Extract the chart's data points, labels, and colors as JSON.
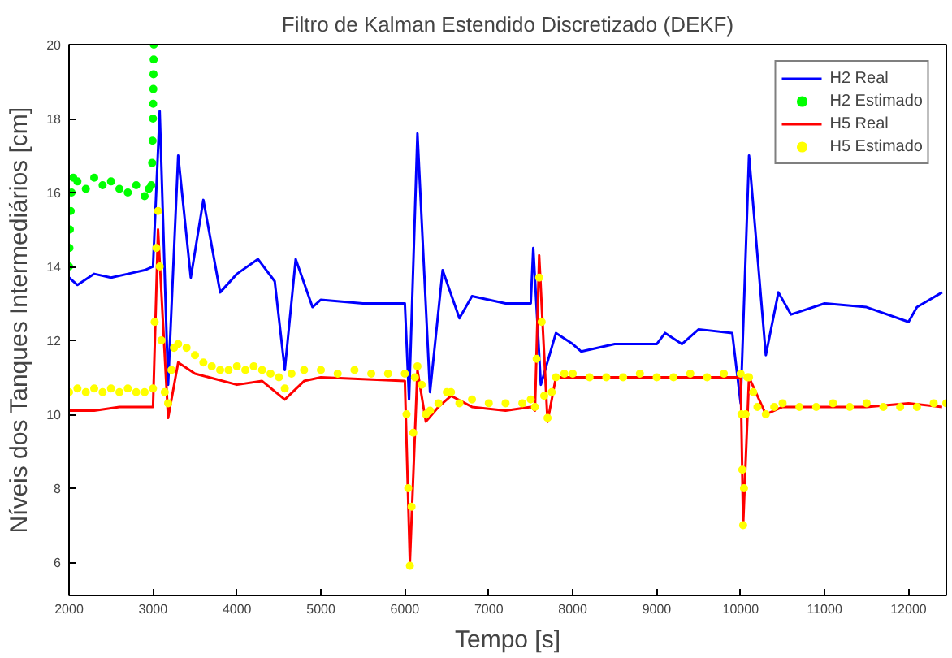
{
  "chart_data": {
    "type": "line",
    "title": "Filtro de Kalman Estendido Discretizado (DEKF)",
    "xlabel": "Tempo [s]",
    "ylabel": "Níveis dos Tanques Intermediários [cm]",
    "xlim": [
      2000,
      12450
    ],
    "ylim": [
      5.1,
      20
    ],
    "xticks": [
      2000,
      3000,
      4000,
      5000,
      6000,
      7000,
      8000,
      9000,
      10000,
      11000,
      12000
    ],
    "yticks": [
      6,
      8,
      10,
      12,
      14,
      16,
      18,
      20
    ],
    "grid": false,
    "legend": "top right",
    "series": [
      {
        "name": "H2 Real",
        "color": "#0000ff",
        "x": [
          2000,
          2100,
          2300,
          2500,
          2700,
          2900,
          3000,
          3080,
          3180,
          3300,
          3450,
          3600,
          3800,
          4000,
          4250,
          4450,
          4570,
          4700,
          4900,
          5000,
          5500,
          6000,
          6050,
          6150,
          6300,
          6450,
          6650,
          6800,
          7200,
          7500,
          7530,
          7620,
          7800,
          8000,
          8100,
          8500,
          9000,
          9100,
          9300,
          9500,
          9900,
          10000,
          10100,
          10300,
          10450,
          10600,
          11000,
          11500,
          12000,
          12100,
          12400
        ],
        "values": [
          13.7,
          13.5,
          13.8,
          13.7,
          13.8,
          13.9,
          14.0,
          18.2,
          10.8,
          17.0,
          13.7,
          15.8,
          13.3,
          13.8,
          14.2,
          13.6,
          11.2,
          14.2,
          12.9,
          13.1,
          13.0,
          13.0,
          10.4,
          17.6,
          10.6,
          13.9,
          12.6,
          13.2,
          13.0,
          13.0,
          14.5,
          10.8,
          12.2,
          11.9,
          11.7,
          11.9,
          11.9,
          12.2,
          11.9,
          12.3,
          12.2,
          10.3,
          17.0,
          11.6,
          13.3,
          12.7,
          13.0,
          12.9,
          12.5,
          12.9,
          13.3
        ]
      },
      {
        "name": "H2 Estimado",
        "color": "#00ff00",
        "type": "scatter",
        "x": [
          2000,
          2005,
          2010,
          2020,
          2030,
          2050,
          2100,
          2200,
          2300,
          2400,
          2500,
          2600,
          2700,
          2800,
          2900,
          2950,
          2980,
          2990,
          2995,
          3000,
          3002,
          3004,
          3006,
          3008,
          3010
        ],
        "values": [
          14.0,
          14.5,
          15.0,
          15.5,
          16.0,
          16.4,
          16.3,
          16.1,
          16.4,
          16.2,
          16.3,
          16.1,
          16.0,
          16.2,
          15.9,
          16.1,
          16.2,
          16.8,
          17.4,
          18.0,
          18.4,
          18.8,
          19.2,
          19.6,
          20.0
        ]
      },
      {
        "name": "H5 Real",
        "color": "#ff0000",
        "x": [
          2000,
          2300,
          2600,
          2900,
          3000,
          3060,
          3180,
          3300,
          3500,
          4000,
          4300,
          4570,
          4800,
          5000,
          6000,
          6060,
          6150,
          6250,
          6400,
          6550,
          6800,
          7200,
          7500,
          7550,
          7600,
          7700,
          7800,
          8500,
          9500,
          10000,
          10030,
          10100,
          10300,
          10500,
          11000,
          11500,
          12000,
          12400
        ],
        "values": [
          10.1,
          10.1,
          10.2,
          10.2,
          10.2,
          15.0,
          9.9,
          11.4,
          11.1,
          10.8,
          10.9,
          10.4,
          10.9,
          11.0,
          10.9,
          6.0,
          11.2,
          9.8,
          10.2,
          10.5,
          10.2,
          10.1,
          10.2,
          10.1,
          14.3,
          9.8,
          11.0,
          11.0,
          11.0,
          11.0,
          7.0,
          11.0,
          10.0,
          10.2,
          10.2,
          10.2,
          10.3,
          10.2
        ]
      },
      {
        "name": "H5 Estimado",
        "color": "#ffff00",
        "type": "scatter",
        "x": [
          2000,
          2100,
          2200,
          2300,
          2400,
          2500,
          2600,
          2700,
          2800,
          2900,
          3000,
          3020,
          3040,
          3060,
          3080,
          3100,
          3140,
          3180,
          3220,
          3250,
          3300,
          3400,
          3500,
          3600,
          3700,
          3800,
          3900,
          4000,
          4100,
          4200,
          4300,
          4400,
          4500,
          4570,
          4650,
          4800,
          5000,
          5200,
          5400,
          5600,
          5800,
          6000,
          6020,
          6040,
          6060,
          6080,
          6100,
          6120,
          6150,
          6200,
          6250,
          6300,
          6400,
          6500,
          6550,
          6650,
          6800,
          7000,
          7200,
          7400,
          7500,
          7550,
          7570,
          7600,
          7630,
          7660,
          7700,
          7750,
          7800,
          7900,
          8000,
          8200,
          8400,
          8600,
          8800,
          9000,
          9200,
          9400,
          9600,
          9800,
          10000,
          10010,
          10020,
          10030,
          10040,
          10060,
          10080,
          10100,
          10150,
          10200,
          10300,
          10400,
          10500,
          10700,
          10900,
          11100,
          11300,
          11500,
          11700,
          11900,
          12100,
          12300,
          12450
        ],
        "values": [
          10.6,
          10.7,
          10.6,
          10.7,
          10.6,
          10.7,
          10.6,
          10.7,
          10.6,
          10.6,
          10.7,
          12.5,
          14.5,
          15.5,
          14.0,
          12.0,
          10.6,
          10.3,
          11.2,
          11.8,
          11.9,
          11.8,
          11.6,
          11.4,
          11.3,
          11.2,
          11.2,
          11.3,
          11.2,
          11.3,
          11.2,
          11.1,
          11.0,
          10.7,
          11.1,
          11.2,
          11.2,
          11.1,
          11.2,
          11.1,
          11.1,
          11.1,
          10.0,
          8.0,
          5.9,
          7.5,
          9.5,
          11.0,
          11.3,
          10.8,
          10.0,
          10.1,
          10.3,
          10.6,
          10.6,
          10.3,
          10.4,
          10.3,
          10.3,
          10.3,
          10.4,
          10.2,
          11.5,
          13.7,
          12.5,
          10.5,
          9.9,
          10.6,
          11.0,
          11.1,
          11.1,
          11.0,
          11.0,
          11.0,
          11.1,
          11.0,
          11.0,
          11.1,
          11.0,
          11.1,
          11.1,
          10.0,
          8.5,
          7.0,
          8.0,
          10.0,
          11.0,
          11.0,
          10.6,
          10.2,
          10.0,
          10.2,
          10.3,
          10.2,
          10.2,
          10.3,
          10.2,
          10.3,
          10.2,
          10.2,
          10.2,
          10.3,
          10.3
        ]
      }
    ]
  }
}
